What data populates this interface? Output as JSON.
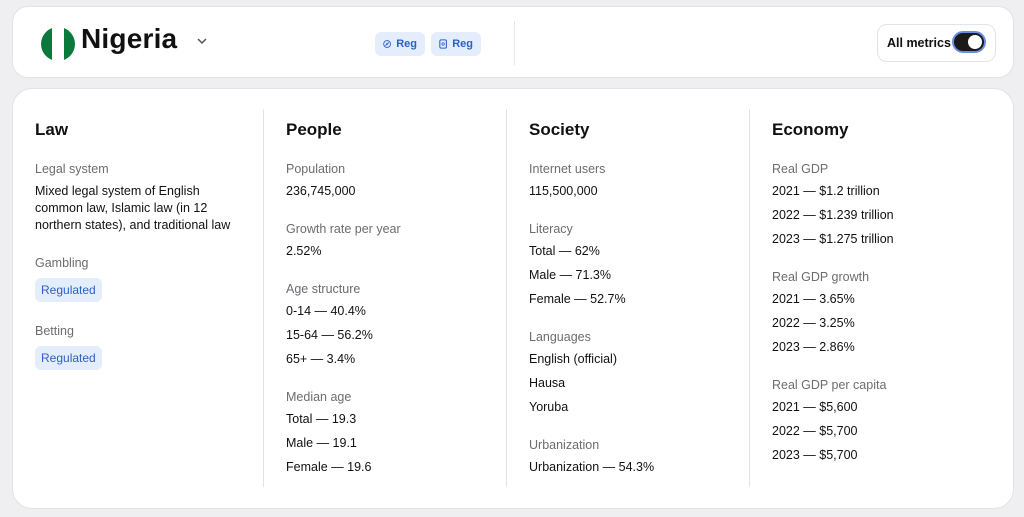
{
  "header": {
    "country": "Nigeria",
    "pills": [
      {
        "icon": "compass-icon",
        "label": "Reg"
      },
      {
        "icon": "card-icon",
        "label": "Reg"
      }
    ],
    "all_metrics": {
      "label": "All metrics",
      "enabled": true
    },
    "flag_colors": [
      "#0a7a3c",
      "#ffffff",
      "#0a7a3c"
    ]
  },
  "columns": {
    "law": {
      "title": "Law",
      "legal_system_label": "Legal system",
      "legal_system_value": "Mixed legal system of English common law, Islamic law (in 12 northern states), and traditional law",
      "gambling_label": "Gambling",
      "gambling_value": "Regulated",
      "betting_label": "Betting",
      "betting_value": "Regulated"
    },
    "people": {
      "title": "People",
      "population_label": "Population",
      "population_value": "236,745,000",
      "growth_label": "Growth rate per year",
      "growth_value": "2.52%",
      "age_label": "Age structure",
      "age_values": [
        "0-14 — 40.4%",
        "15-64 — 56.2%",
        "65+ — 3.4%"
      ],
      "median_label": "Median age",
      "median_values": [
        "Total — 19.3",
        "Male — 19.1",
        "Female — 19.6"
      ]
    },
    "society": {
      "title": "Society",
      "internet_label": "Internet users",
      "internet_value": "115,500,000",
      "literacy_label": "Literacy",
      "literacy_values": [
        "Total — 62%",
        "Male — 71.3%",
        "Female — 52.7%"
      ],
      "languages_label": "Languages",
      "languages_values": [
        "English (official)",
        "Hausa",
        "Yoruba"
      ],
      "urbanization_label": "Urbanization",
      "urbanization_value": "Urbanization — 54.3%"
    },
    "economy": {
      "title": "Economy",
      "gdp_label": "Real GDP",
      "gdp_values": [
        "2021 — $1.2 trillion",
        "2022 — $1.239 trillion",
        "2023 — $1.275 trillion"
      ],
      "growth_label": "Real GDP growth",
      "growth_values": [
        "2021 — 3.65%",
        "2022 — 3.25%",
        "2023 — 2.86%"
      ],
      "per_capita_label": "Real GDP per capita",
      "per_capita_values": [
        "2021 — $5,600",
        "2022 — $5,700",
        "2023 — $5,700"
      ]
    }
  }
}
